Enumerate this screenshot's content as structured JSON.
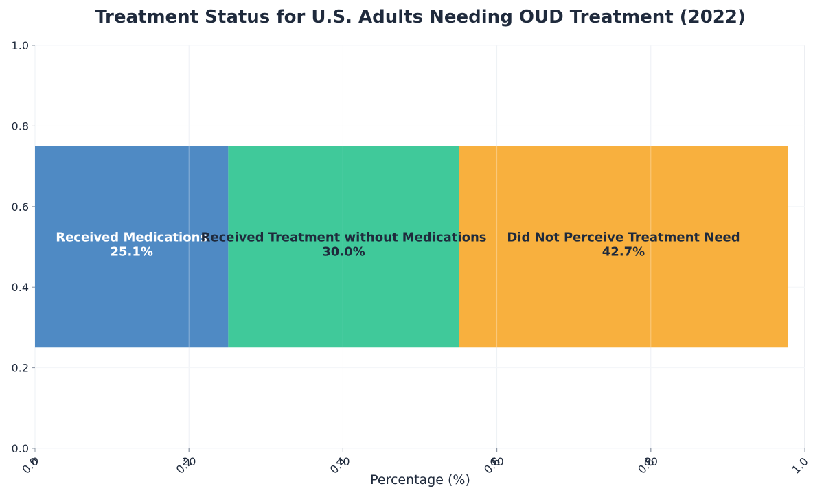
{
  "chart_data": {
    "type": "bar",
    "orientation": "horizontal-stacked",
    "title": "Treatment Status for U.S. Adults Needing OUD Treatment (2022)",
    "xlabel": "Percentage (%)",
    "ylabel": "",
    "xlim": [
      0,
      100
    ],
    "ylim": [
      0.0,
      1.0
    ],
    "x_ticks": [
      "0",
      "20",
      "40",
      "60",
      "80"
    ],
    "overlay_x_ticks": [
      "0.0",
      "0.2",
      "0.4",
      "0.6",
      "0.8",
      "1.0"
    ],
    "y_ticks": [
      "0.0",
      "0.2",
      "0.4",
      "0.6",
      "0.8",
      "1.0"
    ],
    "bar_y_range": [
      0.25,
      0.75
    ],
    "grid": true,
    "segments": [
      {
        "name": "Received Medications",
        "value": 25.1,
        "value_label": "25.1%",
        "color": "#4f8ac4",
        "label_color": "#ffffff"
      },
      {
        "name": "Received Treatment without Medications",
        "value": 30.0,
        "value_label": "30.0%",
        "color": "#40c99a",
        "label_color": "#1f2a3c"
      },
      {
        "name": "Did Not Perceive Treatment Need",
        "value": 42.7,
        "value_label": "42.7%",
        "color": "#f8b03e",
        "label_color": "#1f2a3c"
      }
    ]
  }
}
